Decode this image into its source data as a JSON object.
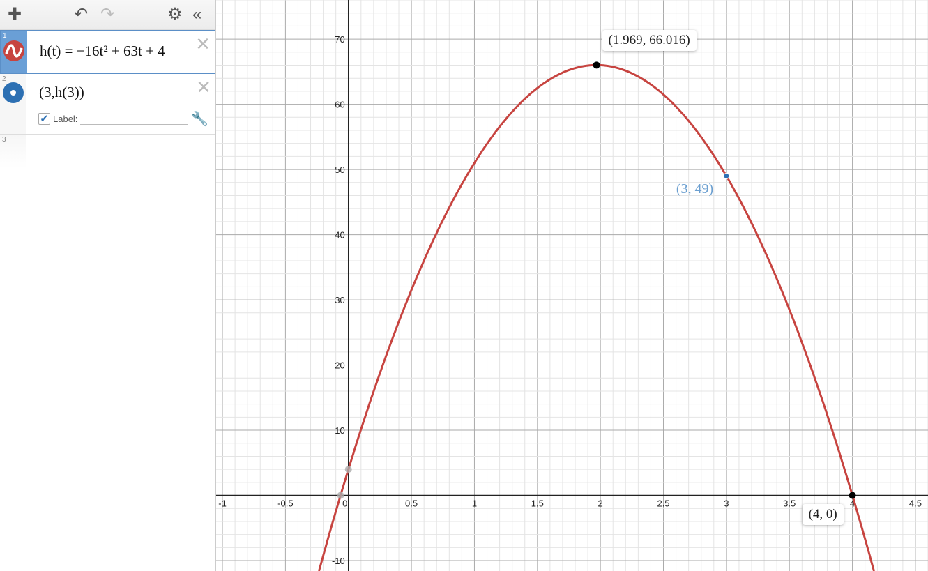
{
  "toolbar": {
    "add_icon": "plus-icon",
    "undo_icon": "undo-icon",
    "redo_icon": "redo-icon",
    "settings_icon": "gear-icon",
    "collapse_icon": "double-chevron-left-icon"
  },
  "expressions": [
    {
      "index": "1",
      "latex_text": "h(t) = −16t² + 63t + 4",
      "color": "#c74440",
      "icon": "sine-wave-icon"
    },
    {
      "index": "2",
      "latex_text": "(3,h(3))",
      "color": "#2d70b3",
      "icon": "point-icon",
      "label_checkbox": true,
      "label_text": "Label:",
      "label_value": ""
    },
    {
      "index": "3"
    }
  ],
  "chart_data": {
    "type": "line",
    "function": {
      "a": -16,
      "b": 63,
      "c": 4,
      "color": "#c74440"
    },
    "xlim": [
      -1.05,
      4.6
    ],
    "ylim": [
      -11.6,
      76
    ],
    "x_ticks": [
      -1,
      -0.5,
      0,
      0.5,
      1,
      1.5,
      2,
      2.5,
      3,
      3.5,
      4,
      4.5
    ],
    "x_tick_labels": [
      "-1",
      "-0.5",
      "0",
      "0.5",
      "1",
      "1.5",
      "2",
      "2.5",
      "3",
      "3.5",
      "4",
      "4.5"
    ],
    "y_ticks": [
      -10,
      10,
      20,
      30,
      40,
      50,
      60,
      70
    ],
    "y_tick_labels": [
      "-10",
      "10",
      "20",
      "30",
      "40",
      "50",
      "60",
      "70"
    ],
    "grid": true,
    "points": [
      {
        "x": 1.969,
        "y": 66.016,
        "label": "(1.969, 66.016)",
        "kind": "maximum",
        "color": "#000000"
      },
      {
        "x": 4,
        "y": 0,
        "label": "(4, 0)",
        "kind": "root",
        "color": "#000000"
      },
      {
        "x": 3,
        "y": 49,
        "label": "(3, 49)",
        "kind": "user-point",
        "color": "#2d70b3"
      },
      {
        "x": 0,
        "y": 4,
        "kind": "y-intercept",
        "color": "#aaaaaa"
      },
      {
        "x": -0.062,
        "y": 0,
        "kind": "root",
        "color": "#aaaaaa"
      }
    ]
  }
}
